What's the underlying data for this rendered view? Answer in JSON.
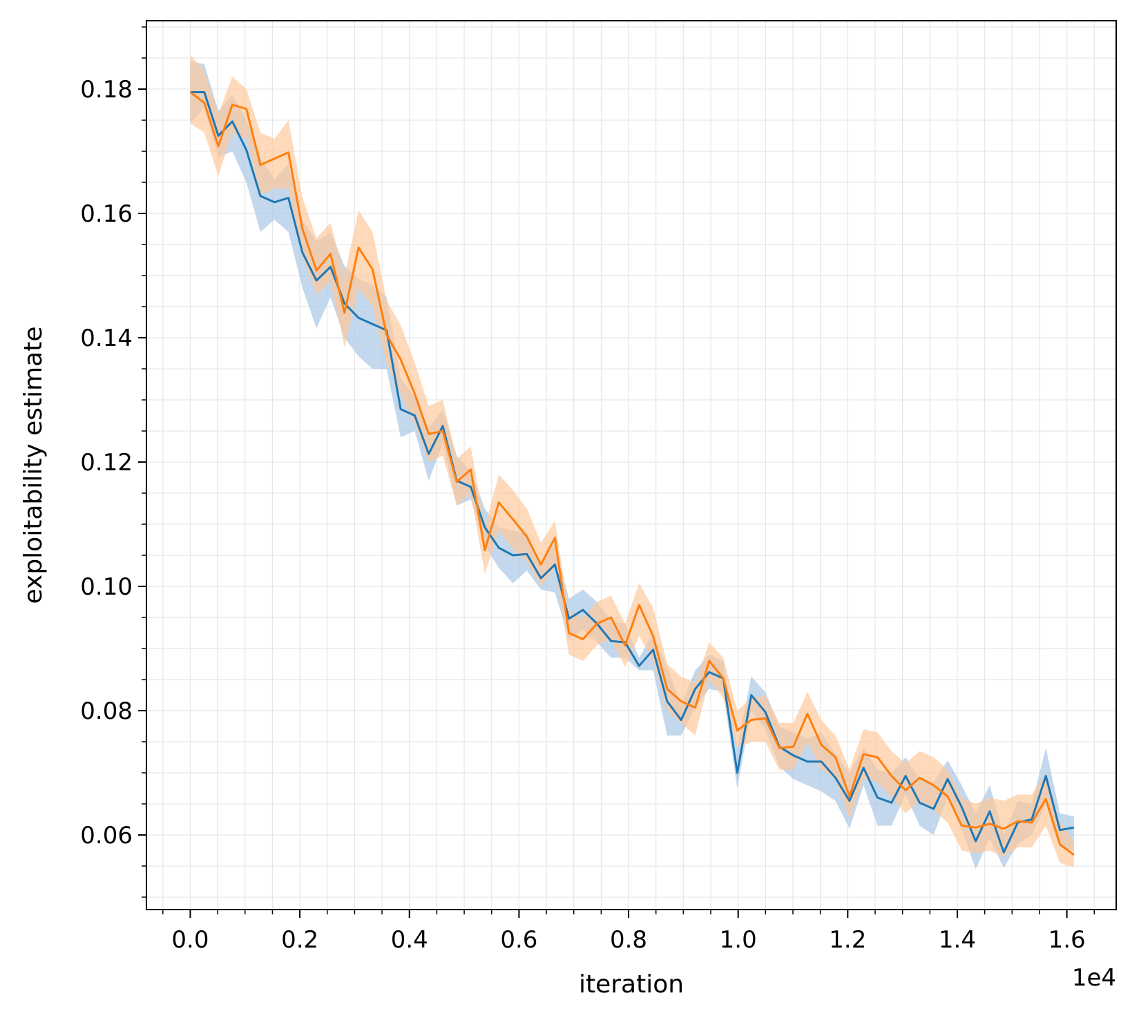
{
  "chart_data": {
    "type": "line",
    "xlabel": "iteration",
    "ylabel": "exploitability estimate",
    "x_offset_label": "1e4",
    "x_tick_labels": [
      "0.0",
      "0.2",
      "0.4",
      "0.6",
      "0.8",
      "1.0",
      "1.2",
      "1.4",
      "1.6"
    ],
    "y_tick_labels": [
      "0.06",
      "0.08",
      "0.10",
      "0.12",
      "0.14",
      "0.16",
      "0.18"
    ],
    "xlim": [
      -800,
      16900
    ],
    "ylim": [
      0.048,
      0.191
    ],
    "grid": true,
    "x": [
      0,
      256,
      512,
      768,
      1024,
      1280,
      1536,
      1792,
      2048,
      2304,
      2560,
      2816,
      3072,
      3328,
      3584,
      3840,
      4096,
      4352,
      4608,
      4864,
      5120,
      5376,
      5632,
      5888,
      6144,
      6400,
      6656,
      6912,
      7168,
      7424,
      7680,
      7936,
      8192,
      8448,
      8704,
      8960,
      9216,
      9472,
      9728,
      9984,
      10240,
      10496,
      10752,
      11008,
      11264,
      11520,
      11776,
      12032,
      12288,
      12544,
      12800,
      13056,
      13312,
      13568,
      13824,
      14080,
      14336,
      14592,
      14848,
      15104,
      15360,
      15616,
      15872,
      16128
    ],
    "series": [
      {
        "color": "#1f77b4",
        "fill": "#aac8e4",
        "values": [
          0.1795,
          0.1795,
          0.1725,
          0.1748,
          0.1702,
          0.1628,
          0.1618,
          0.1625,
          0.1537,
          0.1492,
          0.1514,
          0.1455,
          0.1432,
          0.1422,
          0.1412,
          0.1285,
          0.1275,
          0.1213,
          0.1258,
          0.117,
          0.116,
          0.1095,
          0.1062,
          0.105,
          0.1052,
          0.1013,
          0.1035,
          0.0948,
          0.0962,
          0.094,
          0.0912,
          0.091,
          0.0872,
          0.0898,
          0.0815,
          0.0785,
          0.0835,
          0.0862,
          0.0852,
          0.07,
          0.0825,
          0.0798,
          0.0742,
          0.0728,
          0.0718,
          0.0718,
          0.0692,
          0.0655,
          0.0708,
          0.066,
          0.0652,
          0.0695,
          0.0652,
          0.0642,
          0.069,
          0.0645,
          0.059,
          0.0638,
          0.0572,
          0.062,
          0.0625,
          0.0695,
          0.0608,
          0.0612
        ],
        "lower": [
          0.1745,
          0.177,
          0.169,
          0.17,
          0.165,
          0.157,
          0.159,
          0.157,
          0.148,
          0.1415,
          0.1465,
          0.14,
          0.137,
          0.135,
          0.135,
          0.124,
          0.125,
          0.117,
          0.123,
          0.113,
          0.114,
          0.1065,
          0.103,
          0.1005,
          0.1025,
          0.0995,
          0.099,
          0.0915,
          0.093,
          0.091,
          0.0885,
          0.0885,
          0.0865,
          0.0865,
          0.076,
          0.076,
          0.0805,
          0.0835,
          0.083,
          0.0675,
          0.08,
          0.077,
          0.071,
          0.069,
          0.068,
          0.067,
          0.0655,
          0.061,
          0.068,
          0.0615,
          0.0615,
          0.0665,
          0.0615,
          0.06,
          0.066,
          0.061,
          0.0545,
          0.0595,
          0.0547,
          0.0585,
          0.06,
          0.065,
          0.058,
          0.0575
        ],
        "upper": [
          0.1845,
          0.184,
          0.1765,
          0.179,
          0.175,
          0.169,
          0.1655,
          0.168,
          0.159,
          0.1555,
          0.157,
          0.1515,
          0.1495,
          0.1485,
          0.1465,
          0.1335,
          0.1305,
          0.1255,
          0.1285,
          0.121,
          0.1185,
          0.1125,
          0.1095,
          0.109,
          0.1085,
          0.1035,
          0.107,
          0.098,
          0.0995,
          0.0975,
          0.0945,
          0.094,
          0.0885,
          0.0925,
          0.087,
          0.081,
          0.0865,
          0.089,
          0.088,
          0.074,
          0.0855,
          0.083,
          0.0775,
          0.0765,
          0.0755,
          0.0765,
          0.073,
          0.07,
          0.074,
          0.0705,
          0.07,
          0.0725,
          0.069,
          0.0685,
          0.072,
          0.068,
          0.0635,
          0.068,
          0.06,
          0.0655,
          0.065,
          0.074,
          0.0635,
          0.063
        ]
      },
      {
        "color": "#ff7f0e",
        "fill": "#fdc99c",
        "values": [
          0.1795,
          0.1778,
          0.1708,
          0.1775,
          0.1768,
          0.1678,
          0.1688,
          0.1698,
          0.1575,
          0.1508,
          0.1535,
          0.144,
          0.1545,
          0.151,
          0.1405,
          0.1365,
          0.131,
          0.1245,
          0.125,
          0.1168,
          0.1188,
          0.1058,
          0.1135,
          0.1108,
          0.108,
          0.1035,
          0.1078,
          0.0925,
          0.0915,
          0.094,
          0.095,
          0.0905,
          0.097,
          0.092,
          0.0835,
          0.0815,
          0.0805,
          0.088,
          0.0852,
          0.0768,
          0.0785,
          0.0788,
          0.074,
          0.0742,
          0.0795,
          0.0745,
          0.0725,
          0.0662,
          0.073,
          0.0725,
          0.0695,
          0.0672,
          0.0692,
          0.068,
          0.0662,
          0.0615,
          0.0612,
          0.0618,
          0.061,
          0.0622,
          0.062,
          0.0658,
          0.0585,
          0.0568
        ],
        "lower": [
          0.1745,
          0.173,
          0.166,
          0.173,
          0.172,
          0.163,
          0.164,
          0.164,
          0.153,
          0.147,
          0.149,
          0.1385,
          0.148,
          0.145,
          0.136,
          0.131,
          0.126,
          0.12,
          0.121,
          0.113,
          0.115,
          0.102,
          0.109,
          0.106,
          0.104,
          0.1,
          0.103,
          0.089,
          0.088,
          0.0905,
          0.0915,
          0.087,
          0.092,
          0.088,
          0.08,
          0.078,
          0.076,
          0.085,
          0.082,
          0.074,
          0.075,
          0.075,
          0.0705,
          0.0705,
          0.075,
          0.0705,
          0.069,
          0.0625,
          0.069,
          0.0685,
          0.066,
          0.0635,
          0.0655,
          0.064,
          0.062,
          0.0575,
          0.057,
          0.0575,
          0.0565,
          0.058,
          0.058,
          0.0615,
          0.0555,
          0.0548
        ],
        "upper": [
          0.1855,
          0.183,
          0.176,
          0.182,
          0.18,
          0.173,
          0.172,
          0.175,
          0.1625,
          0.156,
          0.1585,
          0.15,
          0.1605,
          0.157,
          0.146,
          0.142,
          0.136,
          0.129,
          0.13,
          0.1205,
          0.1225,
          0.1095,
          0.118,
          0.1155,
          0.1125,
          0.107,
          0.1105,
          0.096,
          0.095,
          0.0975,
          0.0985,
          0.094,
          0.1005,
          0.0965,
          0.0875,
          0.0855,
          0.0845,
          0.091,
          0.0885,
          0.08,
          0.082,
          0.0825,
          0.078,
          0.078,
          0.083,
          0.0785,
          0.076,
          0.0705,
          0.077,
          0.0765,
          0.0735,
          0.0715,
          0.0735,
          0.0725,
          0.0705,
          0.066,
          0.065,
          0.066,
          0.0655,
          0.0665,
          0.0665,
          0.07,
          0.062,
          0.059
        ]
      }
    ]
  }
}
